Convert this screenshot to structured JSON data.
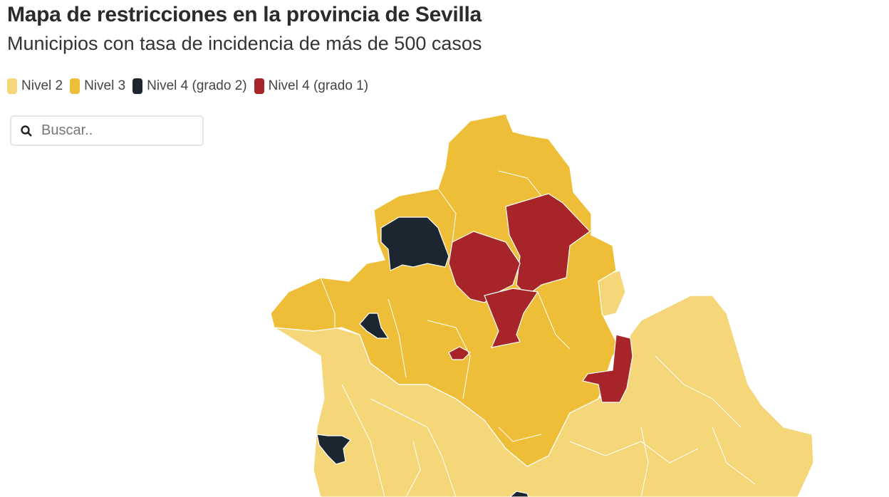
{
  "header": {
    "title": "Mapa de restricciones en la provincia de Sevilla",
    "subtitle": "Municipios con tasa de incidencia de más de 500 casos"
  },
  "legend": [
    {
      "label": "Nivel 2",
      "color": "#f5d77a"
    },
    {
      "label": "Nivel 3",
      "color": "#efbe38"
    },
    {
      "label": "Nivel 4 (grado 2)",
      "color": "#1b2631"
    },
    {
      "label": "Nivel 4 (grado 1)",
      "color": "#a72428"
    }
  ],
  "search": {
    "placeholder": "Buscar..",
    "value": ""
  }
}
